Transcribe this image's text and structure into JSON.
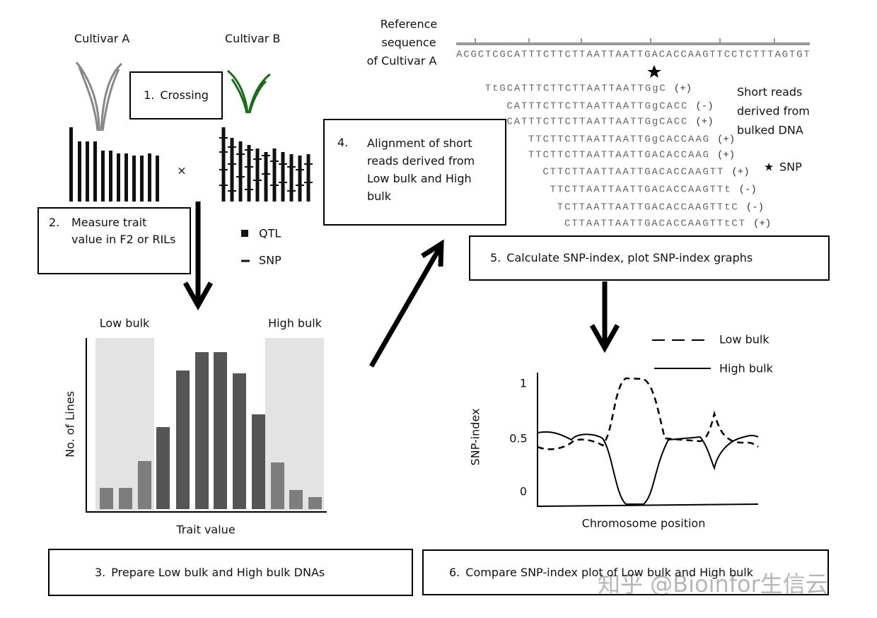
{
  "cultivars": [
    "Cultivar A",
    "Cultivar B"
  ],
  "cross_symbol": "×",
  "marker_key": [
    "QTL",
    "SNP"
  ],
  "steps": [
    {
      "number": "1.",
      "text": "Crossing"
    },
    {
      "number": "2.",
      "text": "Measure trait value in F2 or RILs"
    },
    {
      "number": "3.",
      "text": "Prepare Low bulk and High bulk DNAs"
    },
    {
      "number": "4.",
      "text": "Alignment of short reads derived from Low bulk and High bulk"
    },
    {
      "number": "5.",
      "text": "Calculate SNP-index, plot SNP-index graphs"
    },
    {
      "number": "6.",
      "text": "Compare SNP-index plot of Low bulk and High bulk"
    }
  ],
  "histogram": {
    "low_label": "Low bulk",
    "high_label": "High bulk",
    "y_label": "No. of Lines",
    "x_label": "Trait value"
  },
  "alignment": {
    "reference_label": [
      "Reference",
      "sequence",
      "of Cultivar A"
    ],
    "reference_sequence": "ACGCTCGCATTTCTTCTTAATTAATTGACACCAAGTTCCTCTTTAGTGT",
    "reads": [
      {
        "seq": "TtGCATTTCTTCTTAATTAATTGgC",
        "strand": "(+)"
      },
      {
        "seq": "CATTTCTTCTTAATTAATTGgCACC",
        "strand": "(-)"
      },
      {
        "seq": "CATTTCTTCTTAATTAATTGgCACC",
        "strand": "(+)"
      },
      {
        "seq": "TTCTTCTTAATTAATTGgCACCAAG",
        "strand": "(+)"
      },
      {
        "seq": "TTCTTCTTAATTAATTGACACCAAG",
        "strand": "(+)"
      },
      {
        "seq": "CTTCTTAATTAATTGACACCAAGTT",
        "strand": "(+)"
      },
      {
        "seq": "TTCTTAATTAATTGACACCAAGTTt",
        "strand": "(-)"
      },
      {
        "seq": "TCTTAATTAATTGACACCAAGTTtC",
        "strand": "(-)"
      },
      {
        "seq": "CTTAATTAATTGACACCAAGTTtCT",
        "strand": "(+)"
      }
    ],
    "reads_note": [
      "Short reads",
      "derived from",
      "bulked DNA"
    ],
    "snp_key": {
      "symbol": "★",
      "label": "SNP"
    }
  },
  "snp_graph": {
    "legend": [
      "Low bulk",
      "High bulk"
    ],
    "yticks": [
      "1",
      "0.5",
      "0"
    ],
    "y_label": "SNP-index",
    "x_label": "Chromosome position"
  },
  "watermark": "知乎 @Bioinfor生信云"
}
